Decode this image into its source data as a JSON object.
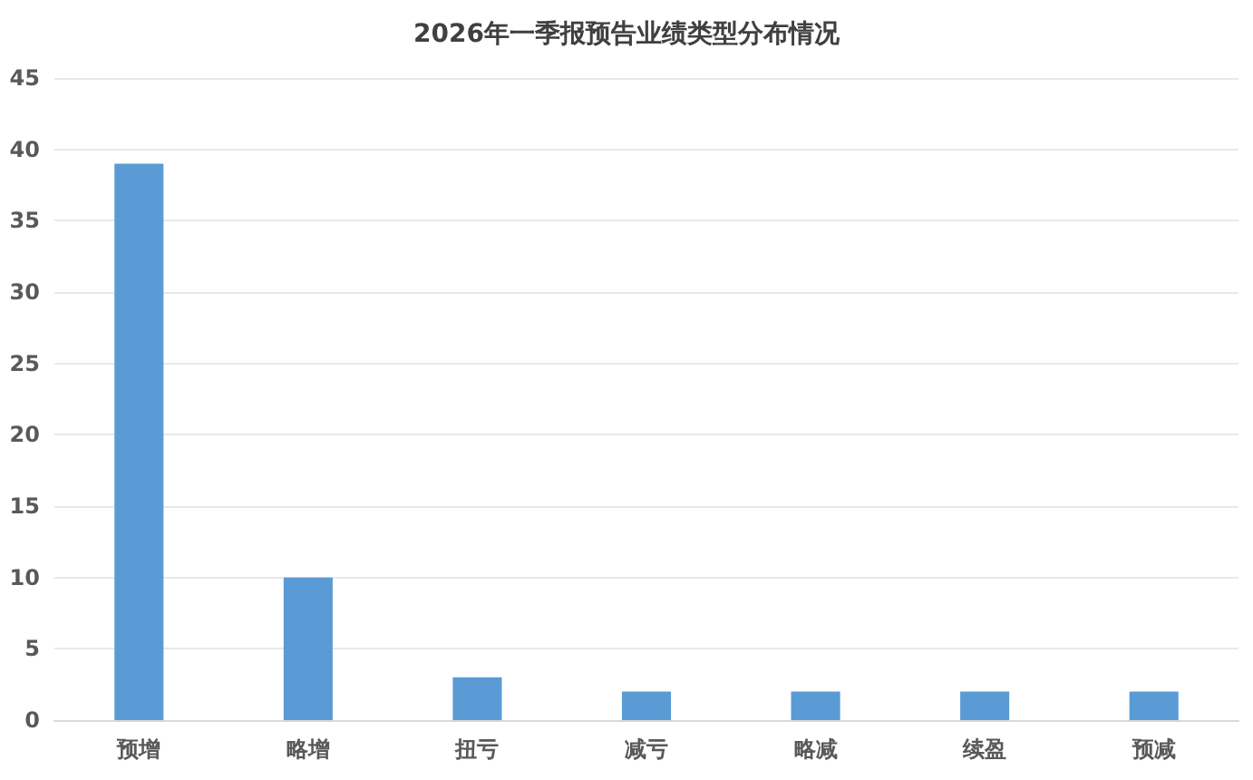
{
  "chart_data": {
    "type": "bar",
    "title": "2026年一季报预告业绩类型分布情况",
    "categories": [
      "预增",
      "略增",
      "扭亏",
      "减亏",
      "略减",
      "续盈",
      "预减"
    ],
    "values": [
      39,
      10,
      3,
      2,
      2,
      2,
      2
    ],
    "color": "#5b9bd5",
    "ylim": [
      0,
      45
    ],
    "yticks": [
      0,
      5,
      10,
      15,
      20,
      25,
      30,
      35,
      40,
      45
    ],
    "grid": "y"
  }
}
